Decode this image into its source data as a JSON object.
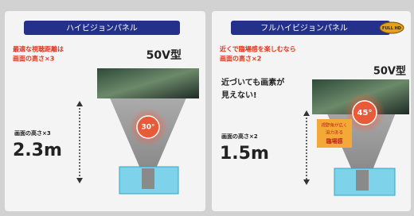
{
  "panels": [
    {
      "title": "ハイビジョンパネル",
      "note": [
        "最適な視聴距離は",
        "画面の高さ×3"
      ],
      "size": "50V型",
      "distance_label": "画面の高さ×3",
      "distance": "2.3m",
      "angle": "30°"
    },
    {
      "title": "フルハイビジョンパネル",
      "badge": "FULL HD",
      "note": [
        "近くで臨場感を楽しむなら",
        "画面の高さ×2"
      ],
      "size": "50V型",
      "caption": [
        "近づいても画素が",
        "見えない!"
      ],
      "callout": [
        "視野角が広く",
        "迫力ある",
        "臨場感"
      ],
      "distance_label": "画面の高さ×2",
      "distance": "1.5m",
      "angle": "45°"
    }
  ]
}
